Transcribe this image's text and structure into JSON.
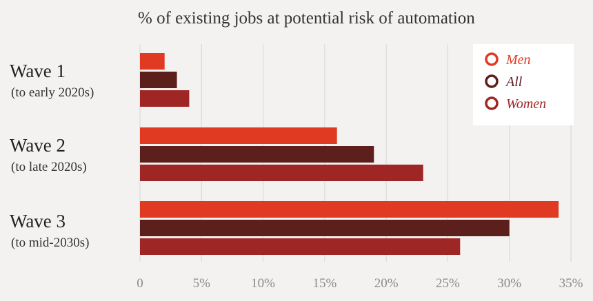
{
  "chart_data": {
    "type": "bar",
    "orientation": "horizontal",
    "title": "% of existing jobs at potential risk of automation",
    "categories": [
      {
        "label": "Wave 1",
        "sublabel": "(to early 2020s)"
      },
      {
        "label": "Wave 2",
        "sublabel": "(to late 2020s)"
      },
      {
        "label": "Wave 3",
        "sublabel": "(to mid-2030s)"
      }
    ],
    "series": [
      {
        "name": "Men",
        "color": "#e03a22",
        "values": [
          2,
          16,
          34
        ]
      },
      {
        "name": "All",
        "color": "#5c1f1c",
        "values": [
          3,
          19,
          30
        ]
      },
      {
        "name": "Women",
        "color": "#9e2624",
        "values": [
          4,
          23,
          26
        ]
      }
    ],
    "xlim": [
      0,
      35
    ],
    "xticks": [
      "0",
      "5%",
      "10%",
      "15%",
      "20%",
      "25%",
      "30%",
      "35%"
    ],
    "grid": true,
    "legend_position": "top-right"
  }
}
